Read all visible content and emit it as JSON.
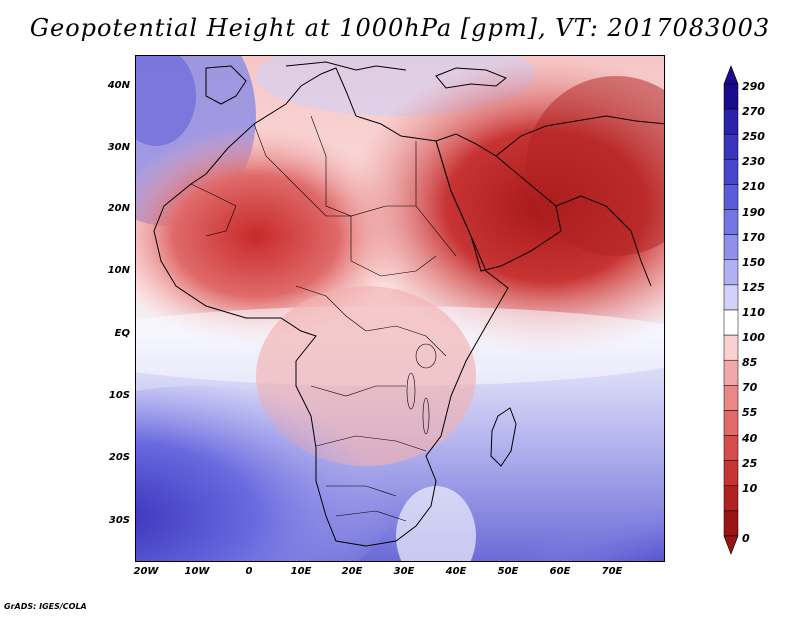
{
  "figure": {
    "title": "Geopotential Height at 1000hPa [gpm], VT: 2017083003",
    "credit": "GrADS: IGES/COLA"
  },
  "axes": {
    "lat_labels": [
      "40N",
      "30N",
      "20N",
      "10N",
      "EQ",
      "10S",
      "20S",
      "30S"
    ],
    "lat_values": [
      40,
      30,
      20,
      10,
      0,
      -10,
      -20,
      -30
    ],
    "lon_labels": [
      "20W",
      "10W",
      "0",
      "10E",
      "20E",
      "30E",
      "40E",
      "50E",
      "60E",
      "70E"
    ],
    "lon_values": [
      -20,
      -10,
      0,
      10,
      20,
      30,
      40,
      50,
      60,
      70
    ],
    "lon_range": [
      -23,
      80
    ],
    "lat_range": [
      -37,
      45
    ]
  },
  "colorbar": {
    "labels": [
      "290",
      "270",
      "250",
      "230",
      "210",
      "190",
      "170",
      "150",
      "125",
      "110",
      "100",
      "85",
      "70",
      "55",
      "40",
      "25",
      "10",
      "0"
    ],
    "colors": [
      "#1a0a8c",
      "#2a22a8",
      "#3a34bc",
      "#4a46cc",
      "#5c5cd8",
      "#7474e2",
      "#9090ea",
      "#b0b0f2",
      "#d2d2f8",
      "#ffffff",
      "#fad0d0",
      "#f2a8a8",
      "#ea8888",
      "#e06a6a",
      "#d64c4c",
      "#c83434",
      "#b02222",
      "#9a1414"
    ]
  },
  "map_layers": {
    "land": "Africa, Arabia, South Asia",
    "heights": "1000hPa geopotential height field"
  }
}
